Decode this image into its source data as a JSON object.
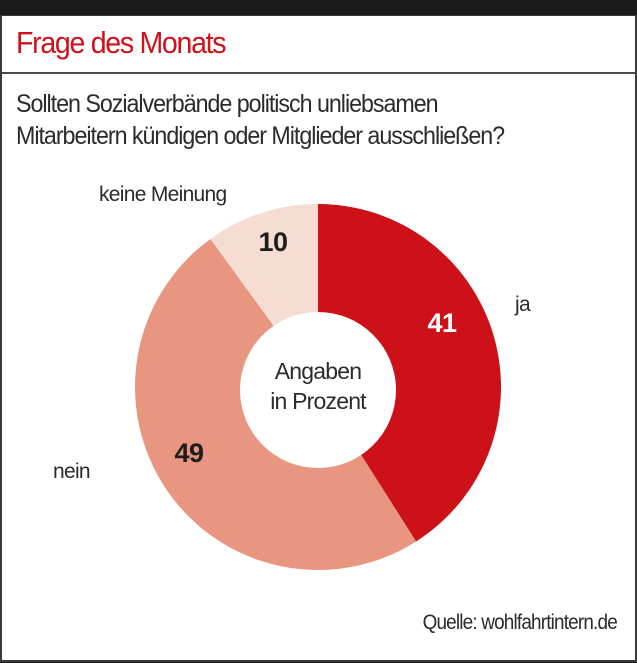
{
  "header": {
    "title": "Frage des Monats"
  },
  "question": {
    "line1": "Sollten Sozialverbände politisch unliebsamen",
    "line2": "Mitarbeitern kündigen oder Mitglieder ausschließen?"
  },
  "source": "Quelle: wohlfahrtintern.de",
  "colors": {
    "title": "#d0101a",
    "ja": "#cc1118",
    "nein": "#e8967f",
    "keine_meinung": "#f6dcd3"
  },
  "chart_data": {
    "type": "pie",
    "variant": "donut",
    "title": "Frage des Monats",
    "center_label": [
      "Angaben",
      "in Prozent"
    ],
    "unit": "Prozent",
    "start": "top",
    "direction": "clockwise",
    "slices": [
      {
        "label": "ja",
        "value": 41,
        "color": "#cc1118",
        "value_color": "#ffffff"
      },
      {
        "label": "nein",
        "value": 49,
        "color": "#e8967f",
        "value_color": "#1e1e1e"
      },
      {
        "label": "keine Meinung",
        "value": 10,
        "color": "#f6dcd3",
        "value_color": "#1e1e1e"
      }
    ]
  }
}
